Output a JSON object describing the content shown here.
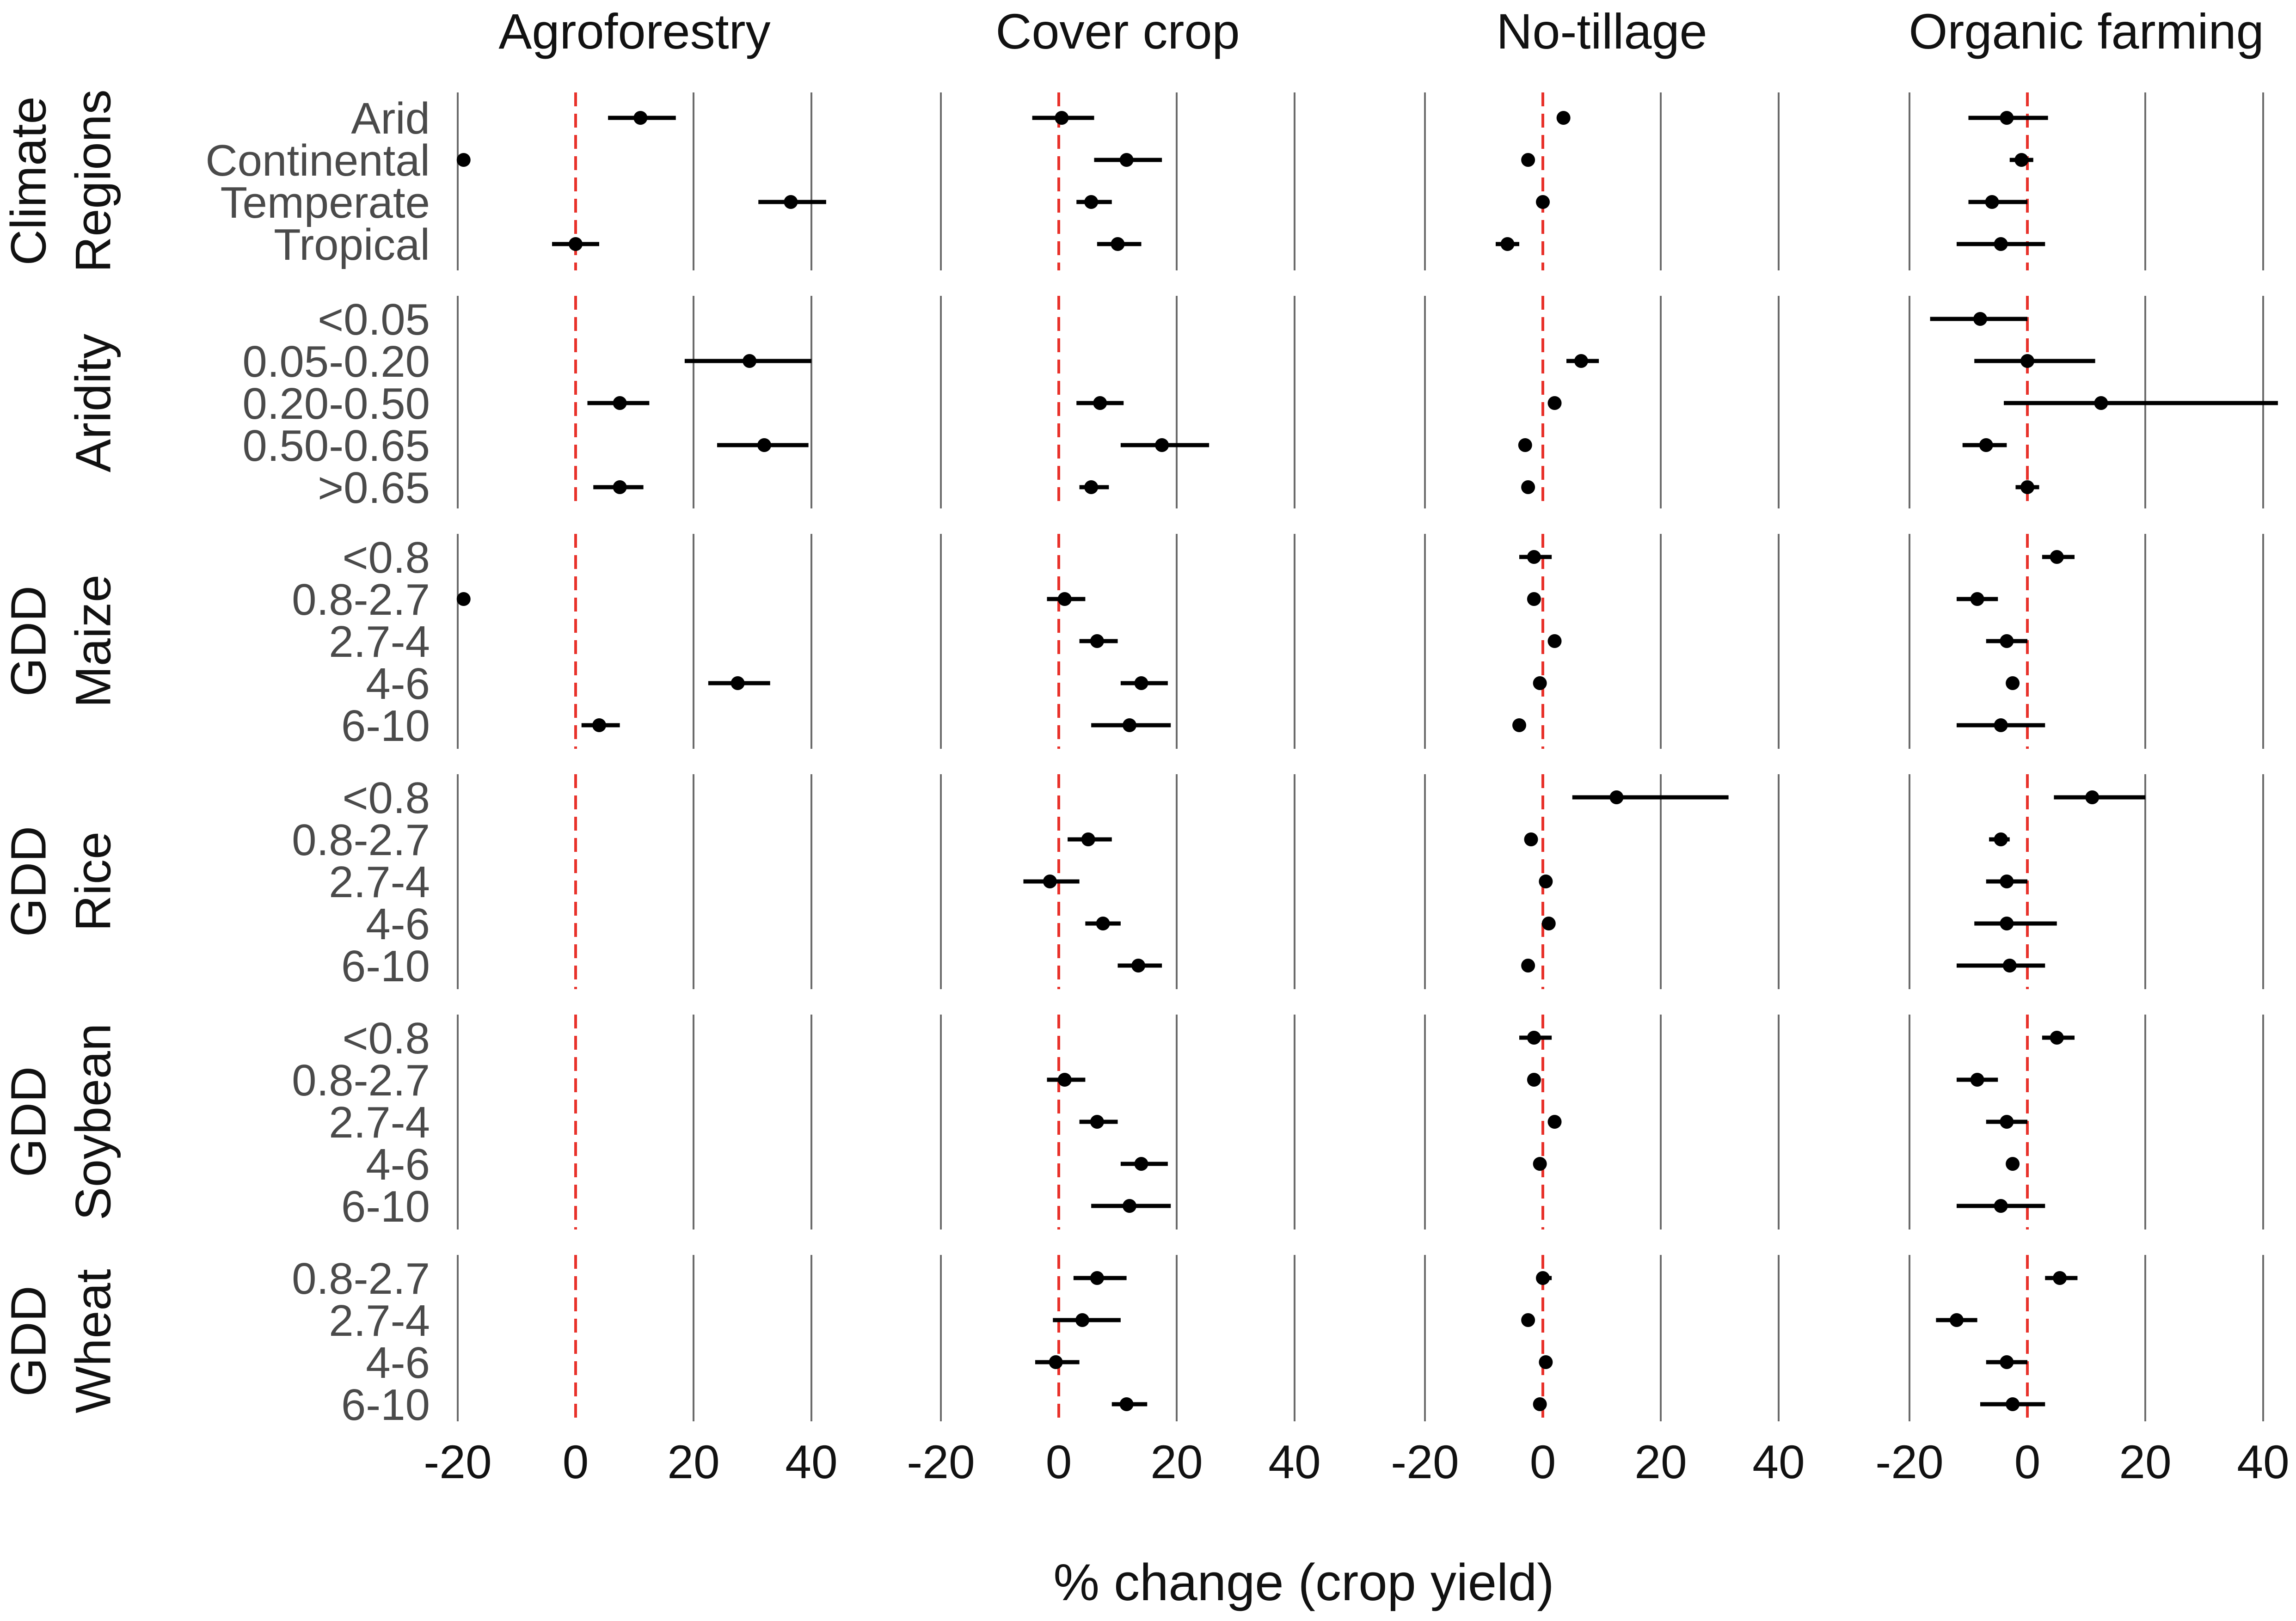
{
  "chart_data": {
    "type": "forest",
    "xlabel": "% change (crop yield)",
    "xlim": [
      -20,
      40
    ],
    "xticks": [
      -20,
      0,
      20,
      40
    ],
    "reference_line": 0,
    "colors": {
      "reference": "#e8312a",
      "points": "#000000",
      "grid": "#6b6b6b"
    },
    "columns": [
      "Agroforestry",
      "Cover crop",
      "No-tillage",
      "Organic farming"
    ],
    "groups": [
      {
        "label": [
          "Climate",
          "Regions"
        ],
        "rows": [
          "Arid",
          "Continental",
          "Temperate",
          "Tropical"
        ],
        "values": [
          [
            {
              "est": 11,
              "lo": 5.5,
              "hi": 17
            },
            {
              "est": 0.5,
              "lo": -4.5,
              "hi": 6
            },
            {
              "est": 3.5,
              "lo": 3,
              "hi": 4
            },
            {
              "est": -3.5,
              "lo": -10,
              "hi": 3.5
            }
          ],
          [
            {
              "est": -19,
              "lo": -19,
              "hi": -19
            },
            {
              "est": 11.5,
              "lo": 6,
              "hi": 17.5
            },
            {
              "est": -2.5,
              "lo": -2.5,
              "hi": -2.5
            },
            {
              "est": -1,
              "lo": -3,
              "hi": 1
            }
          ],
          [
            {
              "est": 36.5,
              "lo": 31,
              "hi": 42.5
            },
            {
              "est": 5.5,
              "lo": 3,
              "hi": 9
            },
            {
              "est": 0,
              "lo": 0,
              "hi": 0
            },
            {
              "est": -6,
              "lo": -10,
              "hi": 0
            }
          ],
          [
            {
              "est": 0,
              "lo": -4,
              "hi": 4
            },
            {
              "est": 10,
              "lo": 6.5,
              "hi": 14
            },
            {
              "est": -6,
              "lo": -8,
              "hi": -4
            },
            {
              "est": -4.5,
              "lo": -12,
              "hi": 3
            }
          ]
        ]
      },
      {
        "label": [
          "Aridity"
        ],
        "rows": [
          "<0.05",
          "0.05-0.20",
          "0.20-0.50",
          "0.50-0.65",
          ">0.65"
        ],
        "values": [
          [
            null,
            null,
            null,
            {
              "est": -8,
              "lo": -16.5,
              "hi": 0
            }
          ],
          [
            {
              "est": 29.5,
              "lo": 18.5,
              "hi": 40
            },
            null,
            {
              "est": 6.5,
              "lo": 4,
              "hi": 9.5
            },
            {
              "est": 0,
              "lo": -9,
              "hi": 11.5
            }
          ],
          [
            {
              "est": 7.5,
              "lo": 2,
              "hi": 12.5
            },
            {
              "est": 7,
              "lo": 3,
              "hi": 11
            },
            {
              "est": 2,
              "lo": 2,
              "hi": 2
            },
            {
              "est": 12.5,
              "lo": -4,
              "hi": 42.5
            }
          ],
          [
            {
              "est": 32,
              "lo": 24,
              "hi": 39.5
            },
            {
              "est": 17.5,
              "lo": 10.5,
              "hi": 25.5
            },
            {
              "est": -3,
              "lo": -3,
              "hi": -3
            },
            {
              "est": -7,
              "lo": -11,
              "hi": -3.5
            }
          ],
          [
            {
              "est": 7.5,
              "lo": 3,
              "hi": 11.5
            },
            {
              "est": 5.5,
              "lo": 3.5,
              "hi": 8.5
            },
            {
              "est": -2.5,
              "lo": -2.5,
              "hi": -2.5
            },
            {
              "est": 0,
              "lo": -2,
              "hi": 2
            }
          ]
        ]
      },
      {
        "label": [
          "GDD",
          "Maize"
        ],
        "rows": [
          "<0.8",
          "0.8-2.7",
          "2.7-4",
          "4-6",
          "6-10"
        ],
        "values": [
          [
            null,
            null,
            {
              "est": -1.5,
              "lo": -4,
              "hi": 1.5
            },
            {
              "est": 5,
              "lo": 2.5,
              "hi": 8
            }
          ],
          [
            {
              "est": -19,
              "lo": -19,
              "hi": -19
            },
            {
              "est": 1,
              "lo": -2,
              "hi": 4.5
            },
            {
              "est": -1.5,
              "lo": -1.5,
              "hi": -1.5
            },
            {
              "est": -8.5,
              "lo": -12,
              "hi": -5
            }
          ],
          [
            null,
            {
              "est": 6.5,
              "lo": 3.5,
              "hi": 10
            },
            {
              "est": 2,
              "lo": 2,
              "hi": 2
            },
            {
              "est": -3.5,
              "lo": -7,
              "hi": 0
            }
          ],
          [
            {
              "est": 27.5,
              "lo": 22.5,
              "hi": 33
            },
            {
              "est": 14,
              "lo": 10.5,
              "hi": 18.5
            },
            {
              "est": -0.5,
              "lo": -1.5,
              "hi": 0.5
            },
            {
              "est": -2.5,
              "lo": -2.5,
              "hi": -2.5
            }
          ],
          [
            {
              "est": 4,
              "lo": 1,
              "hi": 7.5
            },
            {
              "est": 12,
              "lo": 5.5,
              "hi": 19
            },
            {
              "est": -4,
              "lo": -5,
              "hi": -3
            },
            {
              "est": -4.5,
              "lo": -12,
              "hi": 3
            }
          ]
        ]
      },
      {
        "label": [
          "GDD",
          "Rice"
        ],
        "rows": [
          "<0.8",
          "0.8-2.7",
          "2.7-4",
          "4-6",
          "6-10"
        ],
        "values": [
          [
            null,
            null,
            {
              "est": 12.5,
              "lo": 5,
              "hi": 31.5
            },
            {
              "est": 11,
              "lo": 4.5,
              "hi": 20
            }
          ],
          [
            null,
            {
              "est": 5,
              "lo": 1.5,
              "hi": 9
            },
            {
              "est": -2,
              "lo": -2,
              "hi": -2
            },
            {
              "est": -4.5,
              "lo": -6.5,
              "hi": -3
            }
          ],
          [
            null,
            {
              "est": -1.5,
              "lo": -6,
              "hi": 3.5
            },
            {
              "est": 0.5,
              "lo": 0.5,
              "hi": 0.5
            },
            {
              "est": -3.5,
              "lo": -7,
              "hi": 0
            }
          ],
          [
            null,
            {
              "est": 7.5,
              "lo": 4.5,
              "hi": 10.5
            },
            {
              "est": 1,
              "lo": 1,
              "hi": 1
            },
            {
              "est": -3.5,
              "lo": -9,
              "hi": 5
            }
          ],
          [
            null,
            {
              "est": 13.5,
              "lo": 10,
              "hi": 17.5
            },
            {
              "est": -2.5,
              "lo": -2.5,
              "hi": -2.5
            },
            {
              "est": -3,
              "lo": -12,
              "hi": 3
            }
          ]
        ]
      },
      {
        "label": [
          "GDD",
          "Soybean"
        ],
        "rows": [
          "<0.8",
          "0.8-2.7",
          "2.7-4",
          "4-6",
          "6-10"
        ],
        "values": [
          [
            null,
            null,
            {
              "est": -1.5,
              "lo": -4,
              "hi": 1.5
            },
            {
              "est": 5,
              "lo": 2.5,
              "hi": 8
            }
          ],
          [
            null,
            {
              "est": 1,
              "lo": -2,
              "hi": 4.5
            },
            {
              "est": -1.5,
              "lo": -1.5,
              "hi": -1.5
            },
            {
              "est": -8.5,
              "lo": -12,
              "hi": -5
            }
          ],
          [
            null,
            {
              "est": 6.5,
              "lo": 3.5,
              "hi": 10
            },
            {
              "est": 2,
              "lo": 2,
              "hi": 2
            },
            {
              "est": -3.5,
              "lo": -7,
              "hi": 0
            }
          ],
          [
            null,
            {
              "est": 14,
              "lo": 10.5,
              "hi": 18.5
            },
            {
              "est": -0.5,
              "lo": -1.5,
              "hi": 0.5
            },
            {
              "est": -2.5,
              "lo": -2.5,
              "hi": -2.5
            }
          ],
          [
            null,
            {
              "est": 12,
              "lo": 5.5,
              "hi": 19
            },
            null,
            {
              "est": -4.5,
              "lo": -12,
              "hi": 3
            }
          ]
        ]
      },
      {
        "label": [
          "GDD",
          "Wheat"
        ],
        "rows": [
          "0.8-2.7",
          "2.7-4",
          "4-6",
          "6-10"
        ],
        "values": [
          [
            null,
            {
              "est": 6.5,
              "lo": 2.5,
              "hi": 11.5
            },
            {
              "est": 0,
              "lo": -1,
              "hi": 1.5
            },
            {
              "est": 5.5,
              "lo": 3,
              "hi": 8.5
            }
          ],
          [
            null,
            {
              "est": 4,
              "lo": -1,
              "hi": 10.5
            },
            {
              "est": -2.5,
              "lo": -2.5,
              "hi": -2.5
            },
            {
              "est": -12,
              "lo": -15.5,
              "hi": -8.5
            }
          ],
          [
            null,
            {
              "est": -0.5,
              "lo": -4,
              "hi": 3.5
            },
            {
              "est": 0.5,
              "lo": 0.5,
              "hi": 0.5
            },
            {
              "est": -3.5,
              "lo": -7,
              "hi": 0
            }
          ],
          [
            null,
            {
              "est": 11.5,
              "lo": 9,
              "hi": 15
            },
            {
              "est": -0.5,
              "lo": -0.5,
              "hi": -0.5
            },
            {
              "est": -2.5,
              "lo": -8,
              "hi": 3
            }
          ]
        ]
      }
    ]
  }
}
